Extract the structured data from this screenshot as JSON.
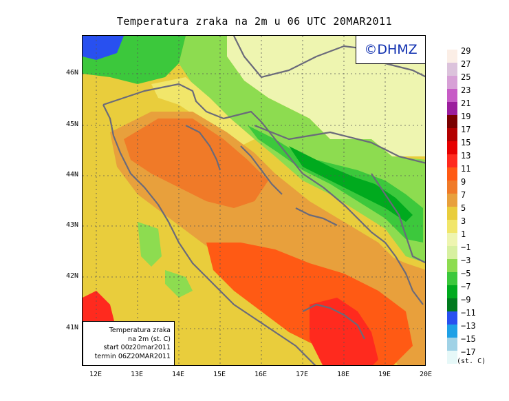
{
  "title": "Temperatura zraka na 2m u 06 UTC 20MAR2011",
  "copyright": "©DHMZ",
  "info_box": {
    "line1": "Temperatura zraka",
    "line2": "na 2m (st. C)",
    "line3": "start 00z20mar2011",
    "line4": "termin 06Z20MAR2011"
  },
  "axes": {
    "lat_labels": [
      "46N",
      "45N",
      "44N",
      "43N",
      "42N",
      "41N"
    ],
    "lon_labels": [
      "12E",
      "13E",
      "14E",
      "15E",
      "16E",
      "17E",
      "18E",
      "19E",
      "20E"
    ]
  },
  "legend": {
    "unit": "(st. C)",
    "items": [
      {
        "label": "29",
        "color": "#fbeee6"
      },
      {
        "label": "27",
        "color": "#dcc3dc"
      },
      {
        "label": "25",
        "color": "#d7a0d6"
      },
      {
        "label": "23",
        "color": "#c75cc6"
      },
      {
        "label": "21",
        "color": "#9b1e9d"
      },
      {
        "label": "19",
        "color": "#7a0000"
      },
      {
        "label": "17",
        "color": "#b30000"
      },
      {
        "label": "15",
        "color": "#e60000"
      },
      {
        "label": "13",
        "color": "#ff2a1e"
      },
      {
        "label": "11",
        "color": "#ff5a14"
      },
      {
        "label": "9",
        "color": "#f07a28"
      },
      {
        "label": "7",
        "color": "#e8a03c"
      },
      {
        "label": "5",
        "color": "#e9cd3c"
      },
      {
        "label": "3",
        "color": "#f1e66a"
      },
      {
        "label": "1",
        "color": "#eef5b0"
      },
      {
        "label": "−1",
        "color": "#d7f0a0"
      },
      {
        "label": "−3",
        "color": "#8ddc50"
      },
      {
        "label": "−5",
        "color": "#3cc83c"
      },
      {
        "label": "−7",
        "color": "#00aa1e"
      },
      {
        "label": "−9",
        "color": "#007a1e"
      },
      {
        "label": "−11",
        "color": "#2850f0"
      },
      {
        "label": "−13",
        "color": "#1ea0e6"
      },
      {
        "label": "−15",
        "color": "#a0d2e6"
      },
      {
        "label": "−17",
        "color": "#e6f8f8"
      }
    ]
  }
}
